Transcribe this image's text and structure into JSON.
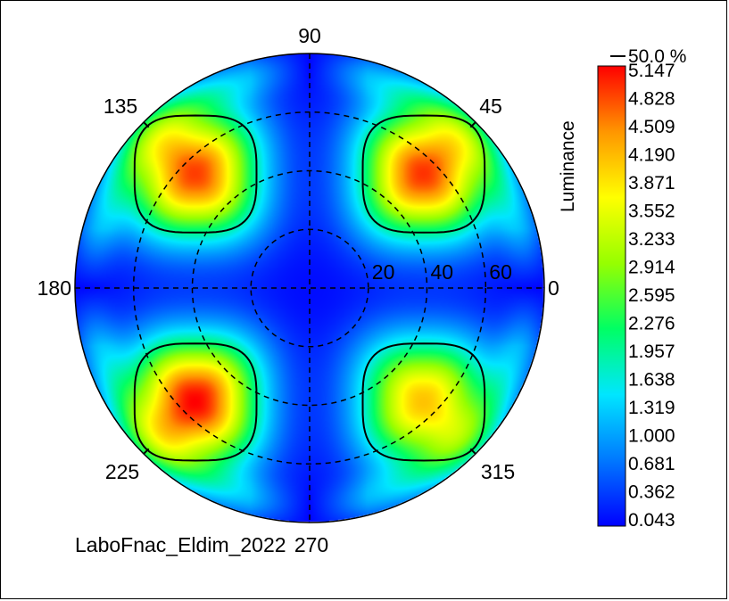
{
  "chart_data": {
    "type": "heatmap",
    "subtype": "polar-conoscope",
    "title": "",
    "footer_label": "LaboFnac_Eldim_2022",
    "angle_labels": [
      "0",
      "45",
      "90",
      "135",
      "180",
      "225",
      "270",
      "315"
    ],
    "radial_ticks": [
      "20",
      "40",
      "60"
    ],
    "grid": "dashed",
    "colorbar": {
      "label": "Luminance",
      "contour_marker": "50.0 %",
      "min": 0.043,
      "max": 5.147,
      "ticks": [
        "5.147",
        "4.828",
        "4.509",
        "4.190",
        "3.871",
        "3.552",
        "3.233",
        "2.914",
        "2.595",
        "2.276",
        "1.957",
        "1.638",
        "1.319",
        "1.000",
        "0.681",
        "0.362",
        "0.043"
      ],
      "colors": [
        "#0000ff",
        "#0078ff",
        "#00e6ff",
        "#00ff64",
        "#96ff00",
        "#ffff00",
        "#ff9600",
        "#ff0000"
      ]
    },
    "lobes": [
      {
        "azimuth_deg": 45,
        "inclination_deg": 55,
        "peak": 4.9,
        "contour": "50.0 %"
      },
      {
        "azimuth_deg": 135,
        "inclination_deg": 55,
        "peak": 4.85,
        "contour": "50.0 %"
      },
      {
        "azimuth_deg": 225,
        "inclination_deg": 55,
        "peak": 5.147,
        "contour": "50.0 %"
      },
      {
        "azimuth_deg": 315,
        "inclination_deg": 55,
        "peak": 4.1,
        "contour": "50.0 %"
      }
    ]
  }
}
